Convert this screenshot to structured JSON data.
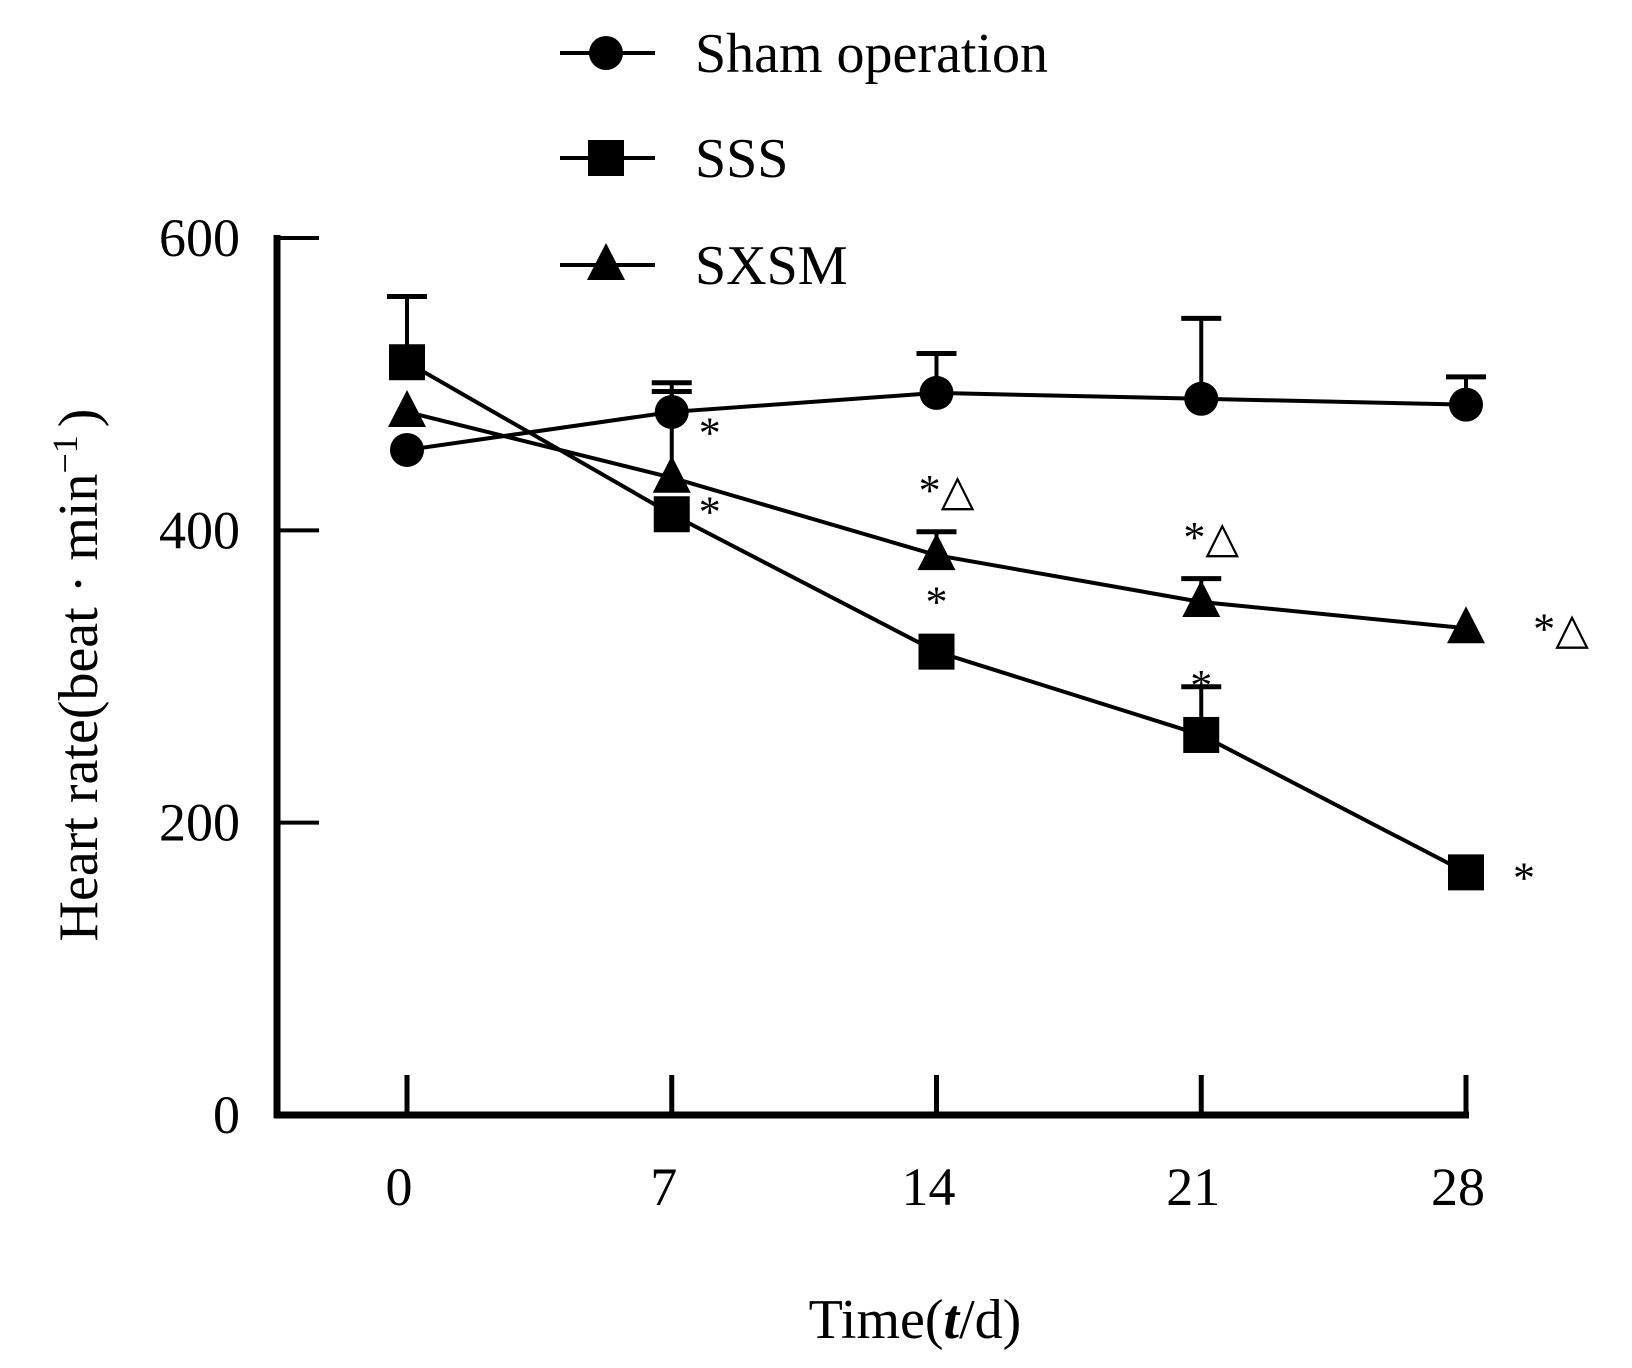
{
  "chart_data": {
    "type": "line",
    "title": "",
    "xlabel": "Time(t/d)",
    "xlabel_parts": [
      "Time(",
      "t",
      "/d)"
    ],
    "ylabel": "Heart rate(beat · min⁻¹)",
    "ylabel_parts": [
      "Heart rate(beat · min",
      "−1",
      ")"
    ],
    "x": [
      0,
      7,
      14,
      21,
      28
    ],
    "x_tick_labels": [
      "0",
      "7",
      "14",
      "21",
      "28"
    ],
    "y_ticks": [
      0,
      200,
      400,
      600
    ],
    "y_tick_labels": [
      "0",
      "200",
      "400",
      "600"
    ],
    "xlim": [
      0,
      28
    ],
    "ylim": [
      0,
      600
    ],
    "grid": false,
    "legend_position": "top-center",
    "series": [
      {
        "name": "Sham operation",
        "marker": "circle",
        "values": [
          455,
          481,
          494,
          490,
          486
        ],
        "error_upper": [
          null,
          501,
          521,
          545,
          505
        ]
      },
      {
        "name": "SSS",
        "marker": "square",
        "values": [
          515,
          411,
          317,
          260,
          166
        ],
        "error_upper": [
          560,
          null,
          null,
          293,
          null
        ]
      },
      {
        "name": "SXSM",
        "marker": "triangle",
        "values": [
          481,
          436,
          383,
          351,
          333
        ],
        "error_upper": [
          null,
          495,
          399,
          367,
          null
        ]
      }
    ],
    "annotations": [
      {
        "x": 7,
        "series": "SXSM",
        "text": "*"
      },
      {
        "x": 7,
        "series": "SSS",
        "text": "*"
      },
      {
        "x": 14,
        "series": "SXSM",
        "text": "*△"
      },
      {
        "x": 14,
        "series": "SSS",
        "text": "*"
      },
      {
        "x": 21,
        "series": "SXSM",
        "text": "*△"
      },
      {
        "x": 21,
        "series": "SSS",
        "text": "*"
      },
      {
        "x": 28,
        "series": "SXSM",
        "text": "*△"
      },
      {
        "x": 28,
        "series": "SSS",
        "text": "*"
      }
    ]
  }
}
